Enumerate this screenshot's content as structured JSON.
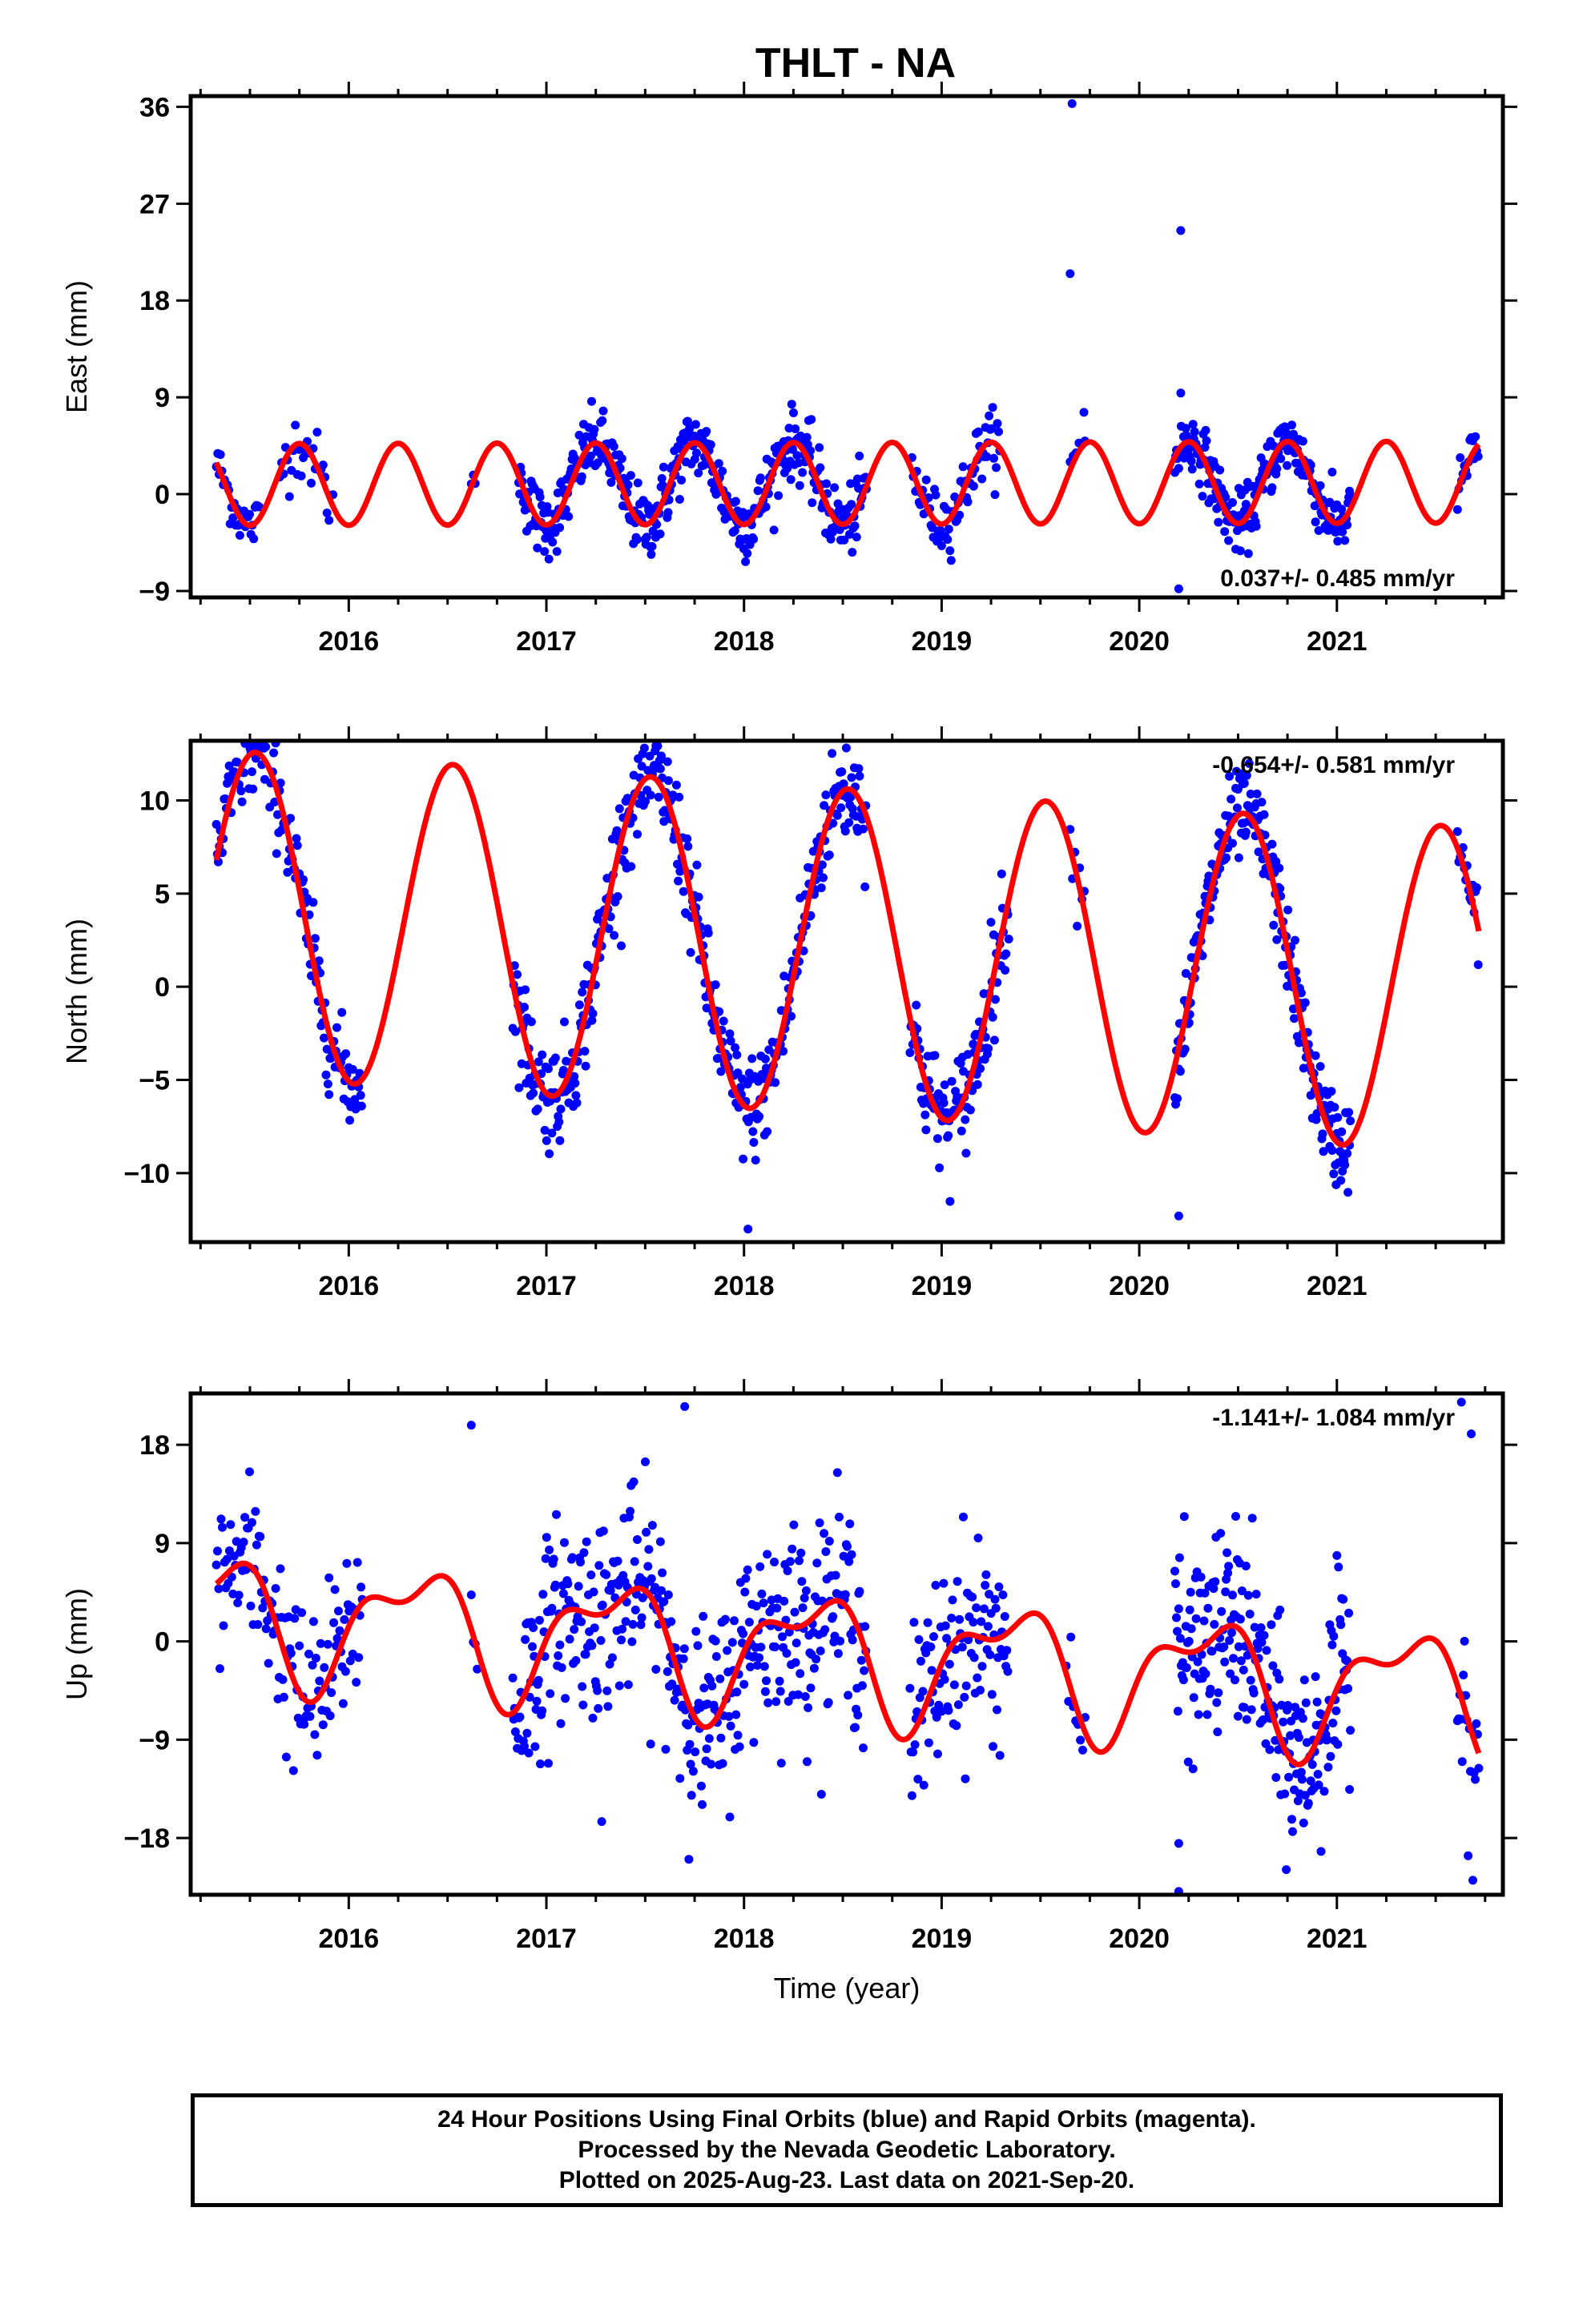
{
  "title": "THLT - NA",
  "x_axis_label": "Time (year)",
  "footer": {
    "line1": "24 Hour Positions Using Final Orbits (blue) and Rapid Orbits (magenta).",
    "line2": "Processed by the Nevada Geodetic Laboratory.",
    "line3": "Plotted on 2025-Aug-23. Last data on 2021-Sep-20."
  },
  "colors": {
    "observations": "#0000ff",
    "fit": "#ff0000",
    "frame": "#000000"
  },
  "chart_data": [
    {
      "type": "scatter",
      "component": "east",
      "ylabel": "East (mm)",
      "rate_text": "0.037+/- 0.485 mm/yr",
      "rate_position": "bottom-right",
      "xlim": [
        2015.2,
        2021.84
      ],
      "ylim": [
        -9.6,
        37.0
      ],
      "xticks": [
        2016,
        2017,
        2018,
        2019,
        2020,
        2021
      ],
      "yticks": [
        -9,
        0,
        9,
        18,
        27,
        36
      ],
      "observations": {
        "segments": [
          {
            "start": 2015.33,
            "end": 2015.55,
            "step": 0.007,
            "noise": 1.2
          },
          {
            "start": 2015.65,
            "end": 2015.92,
            "step": 0.01,
            "noise": 1.6
          },
          {
            "start": 2016.62,
            "end": 2016.64,
            "step": 0.01,
            "noise": 0.4
          },
          {
            "start": 2016.86,
            "end": 2018.62,
            "step": 0.0045,
            "noise": 1.6
          },
          {
            "start": 2018.85,
            "end": 2019.3,
            "step": 0.006,
            "noise": 1.4
          },
          {
            "start": 2019.65,
            "end": 2019.73,
            "step": 0.015,
            "noise": 1.0
          },
          {
            "start": 2020.18,
            "end": 2021.07,
            "step": 0.004,
            "noise": 1.4
          },
          {
            "start": 2021.61,
            "end": 2021.72,
            "step": 0.007,
            "noise": 1.1
          }
        ],
        "outliers": [
          [
            2019.66,
            36.3
          ],
          [
            2019.65,
            20.5
          ],
          [
            2020.21,
            24.5
          ],
          [
            2020.21,
            9.4
          ],
          [
            2019.72,
            7.6
          ],
          [
            2020.2,
            -8.8
          ]
        ]
      },
      "fit": {
        "offset": 1.0,
        "rate": 0.037,
        "reference_epoch": 2018.5,
        "annual_cos": 0.0,
        "annual_sin": 0.0,
        "semiannual_cos": -3.8,
        "semiannual_sin": 0.0
      }
    },
    {
      "type": "scatter",
      "component": "north",
      "ylabel": "North (mm)",
      "rate_text": "-0.654+/- 0.581 mm/yr",
      "rate_position": "top-right",
      "xlim": [
        2015.2,
        2021.84
      ],
      "ylim": [
        -13.7,
        13.2
      ],
      "xticks": [
        2016,
        2017,
        2018,
        2019,
        2020,
        2021
      ],
      "yticks": [
        -10,
        -5,
        0,
        5,
        10
      ],
      "observations": {
        "segments": [
          {
            "start": 2015.33,
            "end": 2016.07,
            "step": 0.005,
            "noise": 1.3
          },
          {
            "start": 2016.83,
            "end": 2018.62,
            "step": 0.0045,
            "noise": 1.4
          },
          {
            "start": 2018.84,
            "end": 2019.34,
            "step": 0.0045,
            "noise": 1.5
          },
          {
            "start": 2019.65,
            "end": 2019.73,
            "step": 0.012,
            "noise": 1.0
          },
          {
            "start": 2020.18,
            "end": 2021.07,
            "step": 0.004,
            "noise": 1.2
          },
          {
            "start": 2021.61,
            "end": 2021.72,
            "step": 0.007,
            "noise": 0.9
          }
        ],
        "outliers": [
          [
            2020.2,
            -12.3
          ],
          [
            2018.02,
            -13.0
          ],
          [
            2015.5,
            12.8
          ]
        ]
      },
      "fit": {
        "offset": 1.9,
        "rate": -0.654,
        "reference_epoch": 2018.5,
        "annual_cos": -8.6,
        "annual_sin": -1.5,
        "semiannual_cos": 0.0,
        "semiannual_sin": 0.0
      }
    },
    {
      "type": "scatter",
      "component": "up",
      "ylabel": "Up (mm)",
      "rate_text": "-1.141+/- 1.084 mm/yr",
      "rate_position": "top-right",
      "xlim": [
        2015.2,
        2021.84
      ],
      "ylim": [
        -23.2,
        22.7
      ],
      "xticks": [
        2016,
        2017,
        2018,
        2019,
        2020,
        2021
      ],
      "yticks": [
        -18,
        -9,
        0,
        9,
        18
      ],
      "observations": {
        "segments": [
          {
            "start": 2015.33,
            "end": 2016.07,
            "step": 0.006,
            "noise": 4.0
          },
          {
            "start": 2016.62,
            "end": 2016.65,
            "step": 0.01,
            "noise": 3.0
          },
          {
            "start": 2016.83,
            "end": 2018.62,
            "step": 0.0045,
            "noise": 4.5
          },
          {
            "start": 2018.84,
            "end": 2019.34,
            "step": 0.005,
            "noise": 4.5
          },
          {
            "start": 2019.63,
            "end": 2019.73,
            "step": 0.012,
            "noise": 3.5
          },
          {
            "start": 2020.18,
            "end": 2021.07,
            "step": 0.004,
            "noise": 4.5
          },
          {
            "start": 2021.61,
            "end": 2021.72,
            "step": 0.006,
            "noise": 5.0
          }
        ],
        "outliers": [
          [
            2020.2,
            -22.9
          ],
          [
            2020.2,
            -18.5
          ],
          [
            2017.7,
            21.5
          ],
          [
            2021.63,
            21.9
          ],
          [
            2016.62,
            19.8
          ],
          [
            2017.28,
            -16.5
          ],
          [
            2021.68,
            19.0
          ]
        ]
      },
      "fit": {
        "offset": -1.2,
        "rate": -1.141,
        "reference_epoch": 2018.5,
        "annual_cos": -2.5,
        "annual_sin": 4.4,
        "semiannual_cos": 2.2,
        "semiannual_sin": 1.2
      }
    }
  ]
}
